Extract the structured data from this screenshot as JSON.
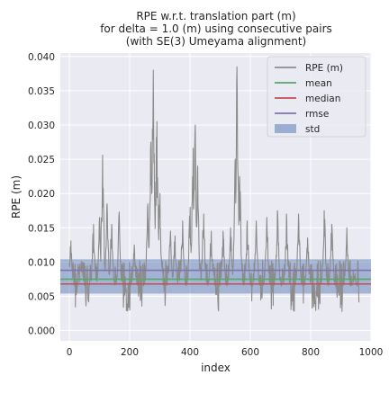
{
  "chart_data": {
    "type": "line",
    "title_lines": [
      "RPE w.r.t. translation part (m)",
      "for delta = 1.0 (m) using consecutive pairs",
      "(with SE(3) Umeyama alignment)"
    ],
    "xlabel": "index",
    "ylabel": "RPE (m)",
    "xlim": [
      -30,
      1000
    ],
    "ylim": [
      -0.0015,
      0.0405
    ],
    "xticks": [
      0,
      200,
      400,
      600,
      800,
      1000
    ],
    "yticks": [
      0.0,
      0.005,
      0.01,
      0.015,
      0.02,
      0.025,
      0.03,
      0.035,
      0.04
    ],
    "ytick_labels": [
      "0.000",
      "0.005",
      "0.010",
      "0.015",
      "0.020",
      "0.025",
      "0.030",
      "0.035",
      "0.040"
    ],
    "grid": true,
    "legend_position": "top-right",
    "n_points": 960,
    "series": [
      {
        "name": "RPE (m)",
        "kind": "line",
        "color": "#8c8c8c",
        "x_range": [
          0,
          960
        ],
        "baseline": 0.0065,
        "noise_range": [
          0.001,
          0.013
        ],
        "peaks": [
          {
            "x": 5,
            "y": 0.0131
          },
          {
            "x": 40,
            "y": 0.0101
          },
          {
            "x": 80,
            "y": 0.0155
          },
          {
            "x": 100,
            "y": 0.0165
          },
          {
            "x": 110,
            "y": 0.0256
          },
          {
            "x": 125,
            "y": 0.0185
          },
          {
            "x": 140,
            "y": 0.0155
          },
          {
            "x": 165,
            "y": 0.0173
          },
          {
            "x": 215,
            "y": 0.0125
          },
          {
            "x": 260,
            "y": 0.0185
          },
          {
            "x": 270,
            "y": 0.0275
          },
          {
            "x": 278,
            "y": 0.038
          },
          {
            "x": 290,
            "y": 0.0305
          },
          {
            "x": 300,
            "y": 0.02
          },
          {
            "x": 335,
            "y": 0.0145
          },
          {
            "x": 350,
            "y": 0.0138
          },
          {
            "x": 375,
            "y": 0.016
          },
          {
            "x": 400,
            "y": 0.018
          },
          {
            "x": 410,
            "y": 0.0266
          },
          {
            "x": 417,
            "y": 0.03
          },
          {
            "x": 425,
            "y": 0.024
          },
          {
            "x": 445,
            "y": 0.017
          },
          {
            "x": 470,
            "y": 0.0145
          },
          {
            "x": 510,
            "y": 0.0145
          },
          {
            "x": 535,
            "y": 0.015
          },
          {
            "x": 550,
            "y": 0.025
          },
          {
            "x": 556,
            "y": 0.0385
          },
          {
            "x": 565,
            "y": 0.0225
          },
          {
            "x": 590,
            "y": 0.016
          },
          {
            "x": 620,
            "y": 0.016
          },
          {
            "x": 655,
            "y": 0.0165
          },
          {
            "x": 690,
            "y": 0.0175
          },
          {
            "x": 720,
            "y": 0.017
          },
          {
            "x": 760,
            "y": 0.017
          },
          {
            "x": 790,
            "y": 0.0135
          },
          {
            "x": 845,
            "y": 0.0175
          },
          {
            "x": 870,
            "y": 0.0155
          },
          {
            "x": 920,
            "y": 0.015
          },
          {
            "x": 945,
            "y": 0.008
          }
        ]
      },
      {
        "name": "mean",
        "kind": "hline",
        "color": "#55a868",
        "y": 0.0075
      },
      {
        "name": "median",
        "kind": "hline",
        "color": "#c44e52",
        "y": 0.0068
      },
      {
        "name": "rmse",
        "kind": "hline",
        "color": "#8172b2",
        "y": 0.0088
      },
      {
        "name": "std",
        "kind": "band",
        "color": "#4c72b0",
        "y_range": [
          0.0054,
          0.0104
        ]
      }
    ]
  }
}
